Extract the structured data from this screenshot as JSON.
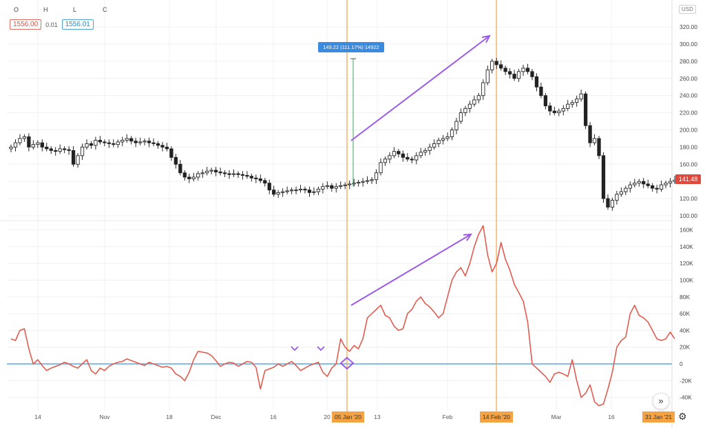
{
  "legend": {
    "o_label": "O",
    "h_label": "H",
    "l_label": "L",
    "c_label": "C",
    "value_left": "1556.00",
    "value_mid": "0.01",
    "value_right": "1556.01"
  },
  "currency": "USD",
  "measure_tooltip": "149.22 (111.17%) 14922",
  "last_price": "141.48",
  "icons": {
    "scroll": "double-chevron-right-icon",
    "settings": "gear-icon"
  },
  "colors": {
    "candle": "#222222",
    "indicator": "#e05a4e",
    "zero_line": "#5aa6e6",
    "arrow": "#9b59e8",
    "vline": "#f5a243",
    "price_tag": "#e2473c"
  },
  "chart_data": [
    {
      "type": "candlestick",
      "ylim": [
        95,
        340
      ],
      "yticks": [
        100,
        120,
        140,
        160,
        180,
        200,
        220,
        240,
        260,
        280,
        300,
        320
      ],
      "ytick_labels": [
        "100.00",
        "120.00",
        "140.00",
        "160.00",
        "180.00",
        "200.00",
        "220.00",
        "240.00",
        "260.00",
        "280.00",
        "300.00",
        "320.00"
      ],
      "ytop_partial": "34",
      "closes": [
        180,
        185,
        190,
        192,
        180,
        183,
        185,
        180,
        178,
        176,
        175,
        178,
        177,
        176,
        160,
        170,
        180,
        184,
        182,
        188,
        186,
        185,
        184,
        183,
        186,
        188,
        190,
        187,
        185,
        186,
        187,
        185,
        184,
        182,
        180,
        178,
        168,
        160,
        150,
        145,
        143,
        145,
        149,
        150,
        152,
        153,
        151,
        150,
        149,
        148,
        149,
        148,
        147,
        146,
        144,
        143,
        141,
        138,
        130,
        125,
        127,
        128,
        129,
        130,
        130,
        131,
        130,
        127,
        128,
        131,
        134,
        135,
        132,
        134,
        135,
        136,
        137,
        138,
        139,
        140,
        141,
        142,
        150,
        162,
        166,
        170,
        175,
        172,
        168,
        166,
        165,
        170,
        174,
        176,
        180,
        184,
        188,
        190,
        192,
        200,
        210,
        220,
        225,
        230,
        235,
        240,
        255,
        270,
        280,
        276,
        272,
        268,
        265,
        260,
        268,
        272,
        268,
        262,
        250,
        240,
        228,
        222,
        220,
        222,
        225,
        230,
        232,
        236,
        242,
        205,
        185,
        190,
        170,
        120,
        110,
        118,
        125,
        128,
        132,
        136,
        138,
        140,
        137,
        135,
        132,
        131,
        136,
        138,
        140,
        141.48
      ]
    },
    {
      "type": "line",
      "ylim": [
        -50,
        175
      ],
      "yticks": [
        -40,
        -20,
        0,
        20,
        40,
        60,
        80,
        100,
        120,
        140,
        160
      ],
      "ytick_labels": [
        "-40K",
        "-20K",
        "0",
        "20K",
        "40K",
        "60K",
        "80K",
        "100K",
        "120K",
        "140K",
        "160K"
      ],
      "series": [
        {
          "values": [
            30,
            28,
            40,
            42,
            18,
            0,
            5,
            -2,
            -8,
            -5,
            -3,
            -1,
            2,
            0,
            -3,
            -5,
            0,
            5,
            -8,
            -12,
            -5,
            -8,
            -3,
            0,
            2,
            3,
            6,
            4,
            2,
            0,
            -2,
            2,
            0,
            -2,
            -4,
            -3,
            -5,
            -12,
            -15,
            -20,
            -10,
            5,
            15,
            14,
            13,
            10,
            4,
            -3,
            0,
            2,
            1,
            -3,
            0,
            3,
            2,
            -4,
            -30,
            -8,
            -6,
            -4,
            0,
            -3,
            0,
            3,
            -2,
            -8,
            -5,
            -2,
            0,
            2,
            -10,
            -15,
            -5,
            0,
            30,
            20,
            15,
            22,
            18,
            30,
            55,
            60,
            65,
            70,
            58,
            55,
            45,
            40,
            42,
            60,
            65,
            75,
            80,
            72,
            68,
            62,
            55,
            60,
            80,
            100,
            110,
            115,
            105,
            120,
            140,
            155,
            165,
            130,
            110,
            120,
            145,
            125,
            112,
            95,
            85,
            75,
            50,
            0,
            -5,
            -10,
            -15,
            -22,
            -12,
            -10,
            -12,
            -15,
            5,
            -20,
            -40,
            -35,
            -25,
            -45,
            -50,
            -48,
            -30,
            -10,
            20,
            28,
            32,
            60,
            70,
            58,
            55,
            50,
            40,
            30,
            28,
            30,
            38,
            30
          ]
        }
      ]
    }
  ],
  "x_tick_labels": [
    "14",
    "Nov",
    "18",
    "Dec",
    "16",
    "20",
    "13",
    "Feb",
    "Mar",
    "16"
  ],
  "date_markers": [
    "05 Jan '20",
    "14 Feb '20",
    "31 Jan '21"
  ]
}
